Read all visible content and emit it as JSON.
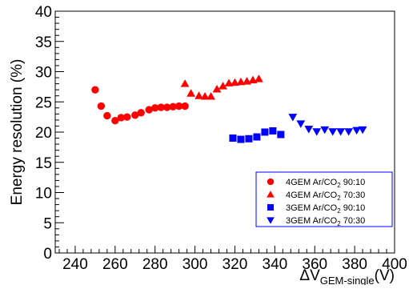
{
  "chart_data": {
    "type": "scatter",
    "title": "",
    "xlabel_main": "ΔV",
    "xlabel_sub": "GEM-single",
    "xlabel_unit": "(V)",
    "ylabel": "Energy resolution (%)",
    "xlim": [
      230,
      400
    ],
    "ylim": [
      0,
      40
    ],
    "x_ticks": [
      240,
      260,
      280,
      300,
      320,
      340,
      360,
      380,
      400
    ],
    "y_ticks": [
      0,
      5,
      10,
      15,
      20,
      25,
      30,
      35,
      40
    ],
    "grid": false,
    "legend_position": "bottom-right",
    "series": [
      {
        "name": "4GEM Ar/CO₂ 90:10",
        "legend_main": "4GEM Ar/CO",
        "legend_sub": "2",
        "legend_tail": " 90:10",
        "marker": "circle",
        "color": "#ff0000",
        "x": [
          250,
          253,
          256,
          260,
          263,
          266,
          270,
          273,
          277,
          280,
          283,
          286,
          289,
          292,
          295
        ],
        "y": [
          27.0,
          24.3,
          22.7,
          21.9,
          22.4,
          22.5,
          22.8,
          23.2,
          23.7,
          24.0,
          24.1,
          24.1,
          24.2,
          24.3,
          24.3
        ]
      },
      {
        "name": "4GEM Ar/CO₂ 70:30",
        "legend_main": "4GEM Ar/CO",
        "legend_sub": "2",
        "legend_tail": " 70:30",
        "marker": "triangle-up",
        "color": "#ff0000",
        "x": [
          295,
          298,
          302,
          305,
          308,
          311,
          314,
          317,
          320,
          323,
          326,
          329,
          332
        ],
        "y": [
          28.0,
          26.4,
          26.0,
          25.9,
          25.9,
          27.1,
          27.6,
          28.1,
          28.2,
          28.3,
          28.4,
          28.6,
          28.8
        ]
      },
      {
        "name": "3GEM Ar/CO₂ 90:10",
        "legend_main": "3GEM Ar/CO",
        "legend_sub": "2",
        "legend_tail": " 90:10",
        "marker": "square",
        "color": "#0000ff",
        "x": [
          319,
          323,
          327,
          331,
          335,
          339,
          343
        ],
        "y": [
          19.0,
          18.8,
          18.9,
          19.2,
          20.0,
          20.2,
          19.6
        ]
      },
      {
        "name": "3GEM Ar/CO₂ 70:30",
        "legend_main": "3GEM Ar/CO",
        "legend_sub": "2",
        "legend_tail": " 70:30",
        "marker": "triangle-down",
        "color": "#0000ff",
        "x": [
          349,
          353,
          357,
          361,
          365,
          369,
          373,
          377,
          381,
          384
        ],
        "y": [
          22.5,
          21.4,
          20.5,
          20.1,
          20.4,
          20.1,
          20.1,
          20.1,
          20.3,
          20.4
        ]
      }
    ]
  }
}
